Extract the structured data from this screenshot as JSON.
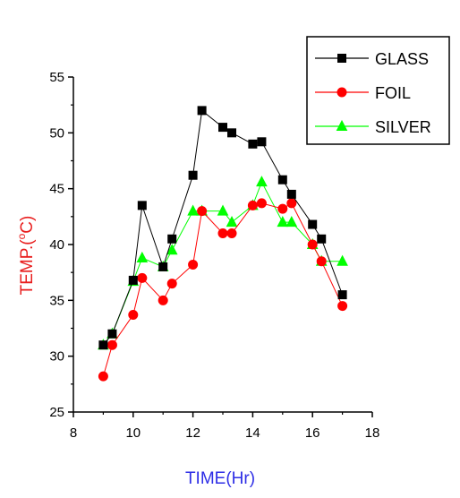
{
  "chart_data": {
    "type": "line",
    "title": "",
    "xlabel": "TIME(Hr)",
    "ylabel_main": "TEMP.(",
    "ylabel_sup": "o",
    "ylabel_end": "C)",
    "xlim": [
      8,
      18
    ],
    "ylim": [
      25,
      55
    ],
    "x_ticks": [
      8,
      10,
      12,
      14,
      16,
      18
    ],
    "y_ticks": [
      25,
      30,
      35,
      40,
      45,
      50,
      55
    ],
    "grid": false,
    "legend_position": "top-right",
    "colors": {
      "xlabel": "#2e2ee6",
      "ylabel": "#e81c1c"
    },
    "series": [
      {
        "name": "GLASS",
        "color": "#000000",
        "marker": "square",
        "x": [
          9,
          9.3,
          10,
          10.3,
          11,
          11.3,
          12,
          12.3,
          13,
          13.3,
          14,
          14.3,
          15,
          15.3,
          16,
          16.3,
          17
        ],
        "y": [
          31,
          32,
          36.8,
          43.5,
          38,
          40.5,
          46.2,
          52,
          50.5,
          50,
          49,
          49.2,
          45.8,
          44.5,
          41.8,
          40.5,
          35.5
        ]
      },
      {
        "name": "FOIL",
        "color": "#ff0000",
        "marker": "circle",
        "x": [
          9,
          9.3,
          10,
          10.3,
          11,
          11.3,
          12,
          12.3,
          13,
          13.3,
          14,
          14.3,
          15,
          15.3,
          16,
          16.3,
          17
        ],
        "y": [
          28.2,
          31,
          33.7,
          37,
          35,
          36.5,
          38.2,
          43,
          41,
          41,
          43.5,
          43.7,
          43.2,
          43.7,
          40,
          38.5,
          34.5
        ]
      },
      {
        "name": "SILVER",
        "color": "#00ff00",
        "marker": "triangle",
        "x": [
          9,
          9.3,
          10,
          10.3,
          11,
          11.3,
          12,
          12.3,
          13,
          13.3,
          14,
          14.3,
          15,
          15.3,
          16,
          16.3,
          17
        ],
        "y": [
          31,
          32,
          36.7,
          38.8,
          38,
          39.5,
          43,
          43,
          43,
          42,
          43.5,
          45.6,
          42,
          42,
          40,
          38.5,
          38.5
        ]
      }
    ]
  }
}
